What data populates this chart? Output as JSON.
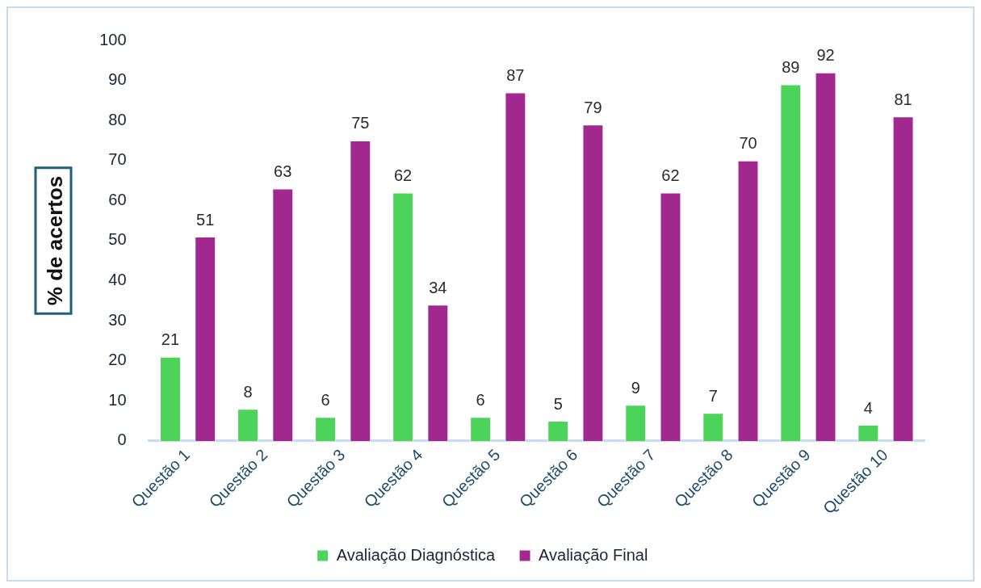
{
  "chart_data": {
    "type": "bar",
    "ylabel": "% de acertos",
    "categories": [
      "Questão 1",
      "Questão 2",
      "Questão 3",
      "Questão 4",
      "Questão 5",
      "Questão 6",
      "Questão 7",
      "Questão 8",
      "Questão 9",
      "Questão 10"
    ],
    "series": [
      {
        "name": "Avaliação Diagnóstica",
        "color": "#4cd45a",
        "values": [
          21,
          8,
          6,
          62,
          6,
          5,
          9,
          7,
          89,
          4
        ]
      },
      {
        "name": "Avaliação Final",
        "color": "#a1288f",
        "values": [
          51,
          63,
          75,
          34,
          87,
          79,
          62,
          70,
          92,
          81
        ]
      }
    ],
    "ylim": [
      0,
      100
    ],
    "yticks": [
      0,
      10,
      20,
      30,
      40,
      50,
      60,
      70,
      80,
      90,
      100
    ],
    "grid": false,
    "legend": "bottom",
    "data_labels": true
  }
}
